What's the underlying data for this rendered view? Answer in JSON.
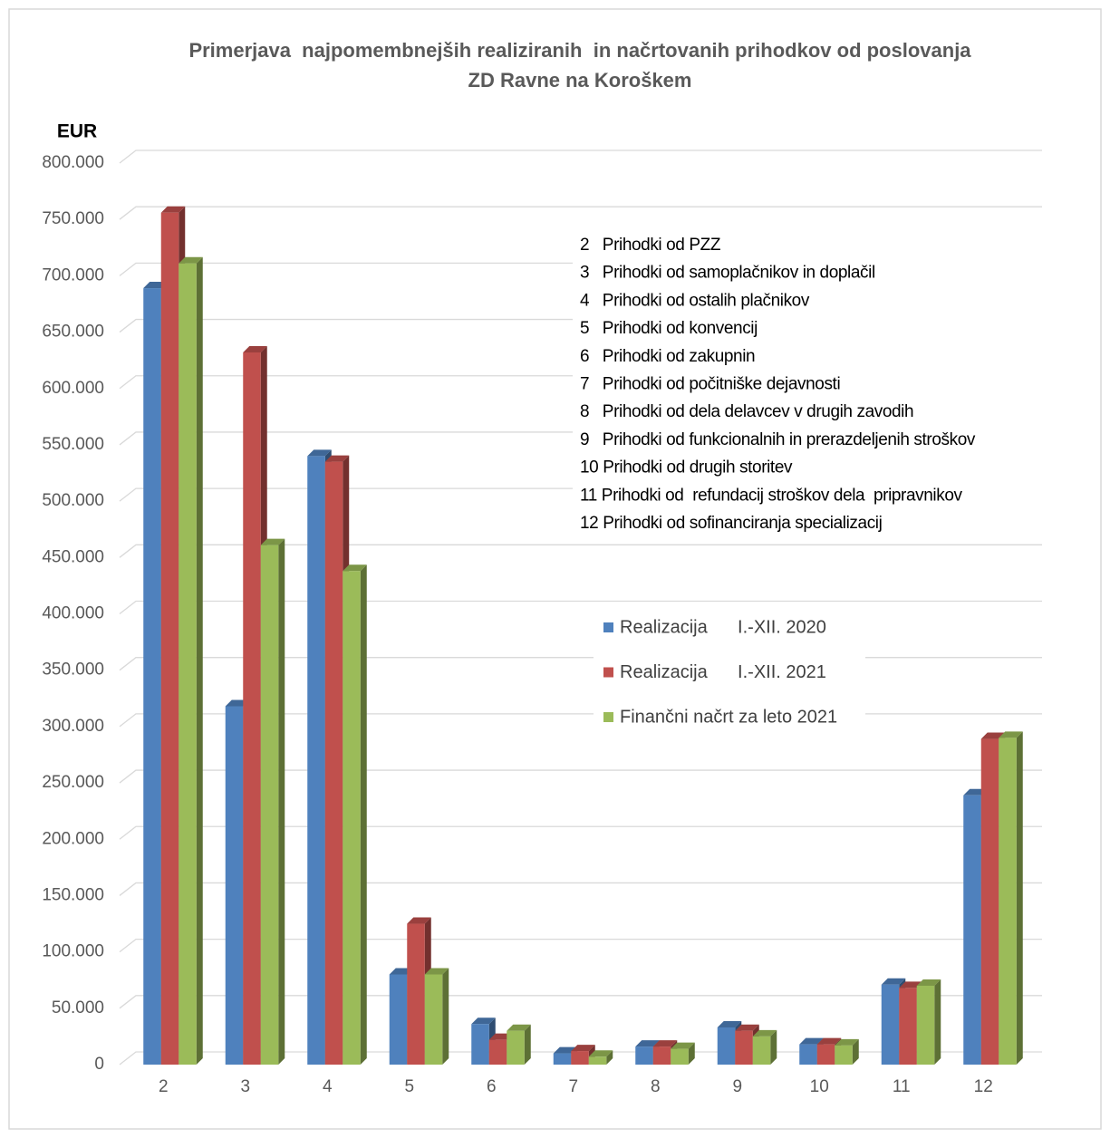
{
  "chart_data": {
    "type": "bar3d",
    "title": "Primerjava  najpomembnejših realiziranih  in načrtovanih prihodkov od poslovanja",
    "subtitle": "ZD Ravne na Koroškem",
    "y_label": "EUR",
    "categories": [
      "2",
      "3",
      "4",
      "5",
      "6",
      "7",
      "8",
      "9",
      "10",
      "11",
      "12"
    ],
    "series": [
      {
        "name": "Realizacija      I.-XII. 2020",
        "color": "#4f81bd",
        "values": [
          689000,
          318000,
          540000,
          80000,
          36000,
          10000,
          16000,
          33000,
          18000,
          71000,
          239000
        ]
      },
      {
        "name": "Realizacija      I.-XII. 2021",
        "color": "#c0504d",
        "values": [
          756000,
          632000,
          535000,
          125000,
          22000,
          12000,
          16000,
          30000,
          18000,
          68000,
          289000
        ]
      },
      {
        "name": "Finančni načrt za leto 2021",
        "color": "#9bbb59",
        "values": [
          711000,
          461000,
          438000,
          80000,
          30000,
          7000,
          14000,
          25000,
          17000,
          70000,
          290000
        ]
      }
    ],
    "ylim": [
      0,
      800000
    ],
    "yticks": [
      0,
      {
        "value": 50000,
        "label": "50.000"
      },
      {
        "value": 100000,
        "label": "100.000"
      },
      {
        "value": 150000,
        "label": "150.000"
      },
      {
        "value": 200000,
        "label": "200.000"
      },
      {
        "value": 250000,
        "label": "250.000"
      },
      {
        "value": 300000,
        "label": "300.000"
      },
      {
        "value": 350000,
        "label": "350.000"
      },
      {
        "value": 400000,
        "label": "400.000"
      },
      {
        "value": 450000,
        "label": "450.000"
      },
      {
        "value": 500000,
        "label": "500.000"
      },
      {
        "value": 550000,
        "label": "550.000"
      },
      {
        "value": 600000,
        "label": "600.000"
      },
      {
        "value": 650000,
        "label": "650.000"
      },
      {
        "value": 700000,
        "label": "700.000"
      },
      {
        "value": 750000,
        "label": "750.000"
      },
      {
        "value": 800000,
        "label": "800.000"
      }
    ],
    "grid": true,
    "category_descriptions": [
      "2   Prihodki od PZZ",
      "3   Prihodki od samoplačnikov in doplačil",
      "4   Prihodki od ostalih plačnikov",
      "5   Prihodki od konvencij",
      "6   Prihodki od zakupnin",
      "7   Prihodki od počitniške dejavnosti",
      "8   Prihodki od dela delavcev v drugih zavodih",
      "9   Prihodki od funkcionalnih in prerazdeljenih stroškov",
      "10 Prihodki od drugih storitev",
      "11 Prihodki od  refundacij stroškov dela  pripravnikov",
      "12 Prihodki od sofinanciranja specializacij"
    ]
  }
}
